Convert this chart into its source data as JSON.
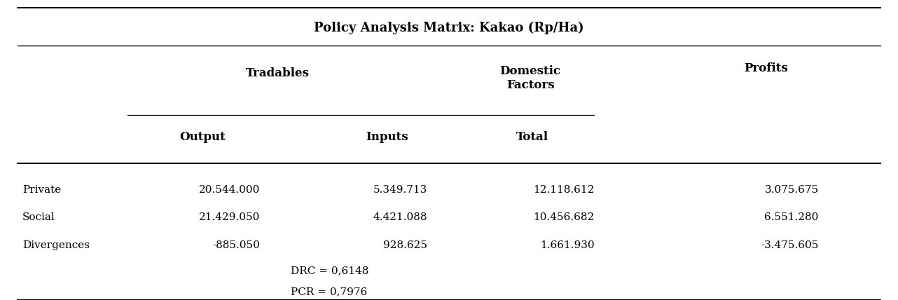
{
  "title": "Policy Analysis Matrix: Kakao (Rp/Ha)",
  "rows": [
    [
      "Private",
      "20.544.000",
      "5.349.713",
      "12.118.612",
      "3.075.675"
    ],
    [
      "Social",
      "21.429.050",
      "4.421.088",
      "10.456.682",
      "6.551.280"
    ],
    [
      "Divergences",
      "-885.050",
      "928.625",
      "1.661.930",
      "-3.475.605"
    ]
  ],
  "footnotes": [
    "DRC = 0,6148",
    "PCR = 0,7976"
  ],
  "fig_width": 12.82,
  "fig_height": 4.28,
  "background_color": "#ffffff",
  "text_color": "#000000",
  "font_size_title": 13,
  "font_size_header": 12,
  "font_size_data": 11,
  "font_size_footnote": 11
}
